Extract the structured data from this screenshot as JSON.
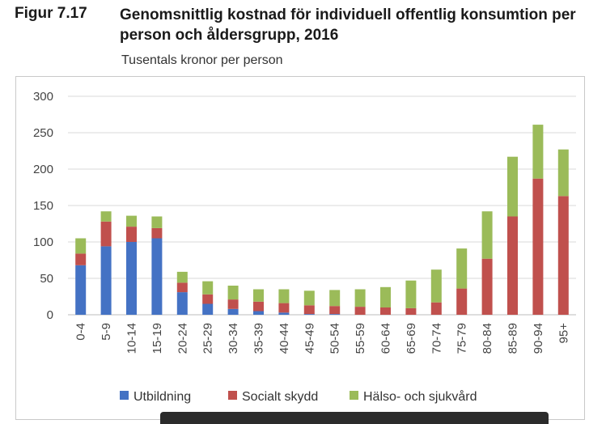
{
  "figure": {
    "label": "Figur 7.17",
    "title": "Genomsnittlig kostnad för individuell offentlig konsumtion per person och åldersgrupp, 2016",
    "unit": "Tusentals kronor per person"
  },
  "chart_data": {
    "type": "bar",
    "stacked": true,
    "title": "Genomsnittlig kostnad för individuell offentlig konsumtion per person och åldersgrupp, 2016",
    "ylabel": "Tusentals kronor per person",
    "xlabel": "",
    "ylim": [
      0,
      300
    ],
    "yticks": [
      0,
      50,
      100,
      150,
      200,
      250,
      300
    ],
    "grid": true,
    "legend_position": "bottom",
    "categories": [
      "0-4",
      "5-9",
      "10-14",
      "15-19",
      "20-24",
      "25-29",
      "30-34",
      "35-39",
      "40-44",
      "45-49",
      "50-54",
      "55-59",
      "60-64",
      "65-69",
      "70-74",
      "75-79",
      "80-84",
      "85-89",
      "90-94",
      "95+"
    ],
    "series": [
      {
        "name": "Utbildning",
        "color": "#4472c4",
        "values": [
          68,
          94,
          100,
          105,
          31,
          15,
          8,
          5,
          3,
          1,
          1,
          0,
          0,
          0,
          0,
          0,
          0,
          0,
          0,
          0
        ]
      },
      {
        "name": "Socialt skydd",
        "color": "#c0504d",
        "values": [
          16,
          34,
          21,
          14,
          13,
          13,
          13,
          13,
          13,
          12,
          11,
          11,
          10,
          9,
          17,
          36,
          77,
          135,
          187,
          163
        ]
      },
      {
        "name": "Hälso- och sjukvård",
        "color": "#9bbb59",
        "values": [
          21,
          14,
          15,
          16,
          15,
          18,
          19,
          17,
          19,
          20,
          22,
          24,
          28,
          38,
          45,
          55,
          65,
          82,
          74,
          64
        ]
      }
    ]
  }
}
